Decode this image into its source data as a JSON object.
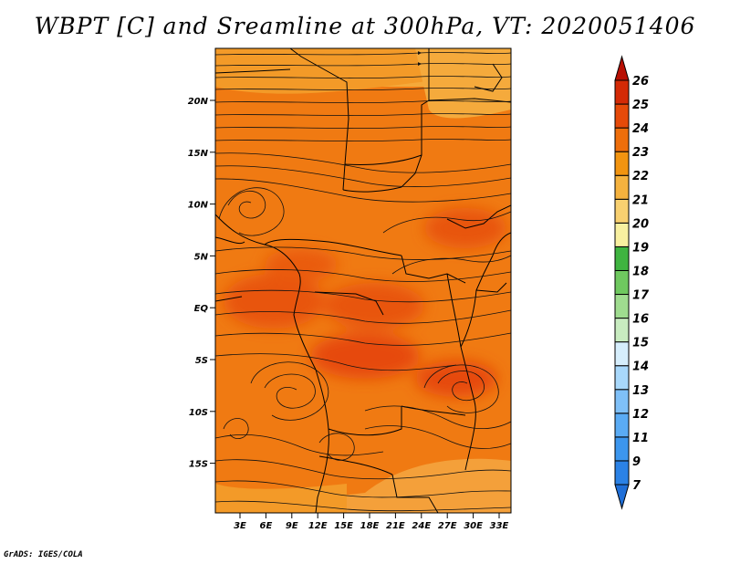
{
  "title": "WBPT [C] and Sreamline at 300hPa, VT: 2020051406",
  "credit": "GrADS: IGES/COLA",
  "map": {
    "lat_labels": [
      "20N",
      "15N",
      "10N",
      "5N",
      "EQ",
      "5S",
      "10S",
      "15S"
    ],
    "lon_labels": [
      "3E",
      "6E",
      "9E",
      "12E",
      "15E",
      "18E",
      "21E",
      "24E",
      "27E",
      "30E",
      "33E"
    ]
  },
  "colorbar": {
    "labels": [
      "7",
      "9",
      "11",
      "12",
      "13",
      "14",
      "15",
      "16",
      "17",
      "18",
      "19",
      "20",
      "21",
      "22",
      "23",
      "24",
      "25",
      "26"
    ],
    "colors": [
      "#1f6fd8",
      "#2b82e6",
      "#3c96ee",
      "#5aabf4",
      "#7fc0f8",
      "#a8d8fb",
      "#d6eefc",
      "#c8ecc0",
      "#9fdc8f",
      "#6fc85f",
      "#3fb440",
      "#f8f0a0",
      "#f8d070",
      "#f5b23e",
      "#f29410",
      "#ee6e0b",
      "#e64a09",
      "#d42a06",
      "#b80f03"
    ],
    "levels": [
      7,
      9,
      11,
      12,
      13,
      14,
      15,
      16,
      17,
      18,
      19,
      20,
      21,
      22,
      23,
      24,
      25,
      26
    ]
  }
}
